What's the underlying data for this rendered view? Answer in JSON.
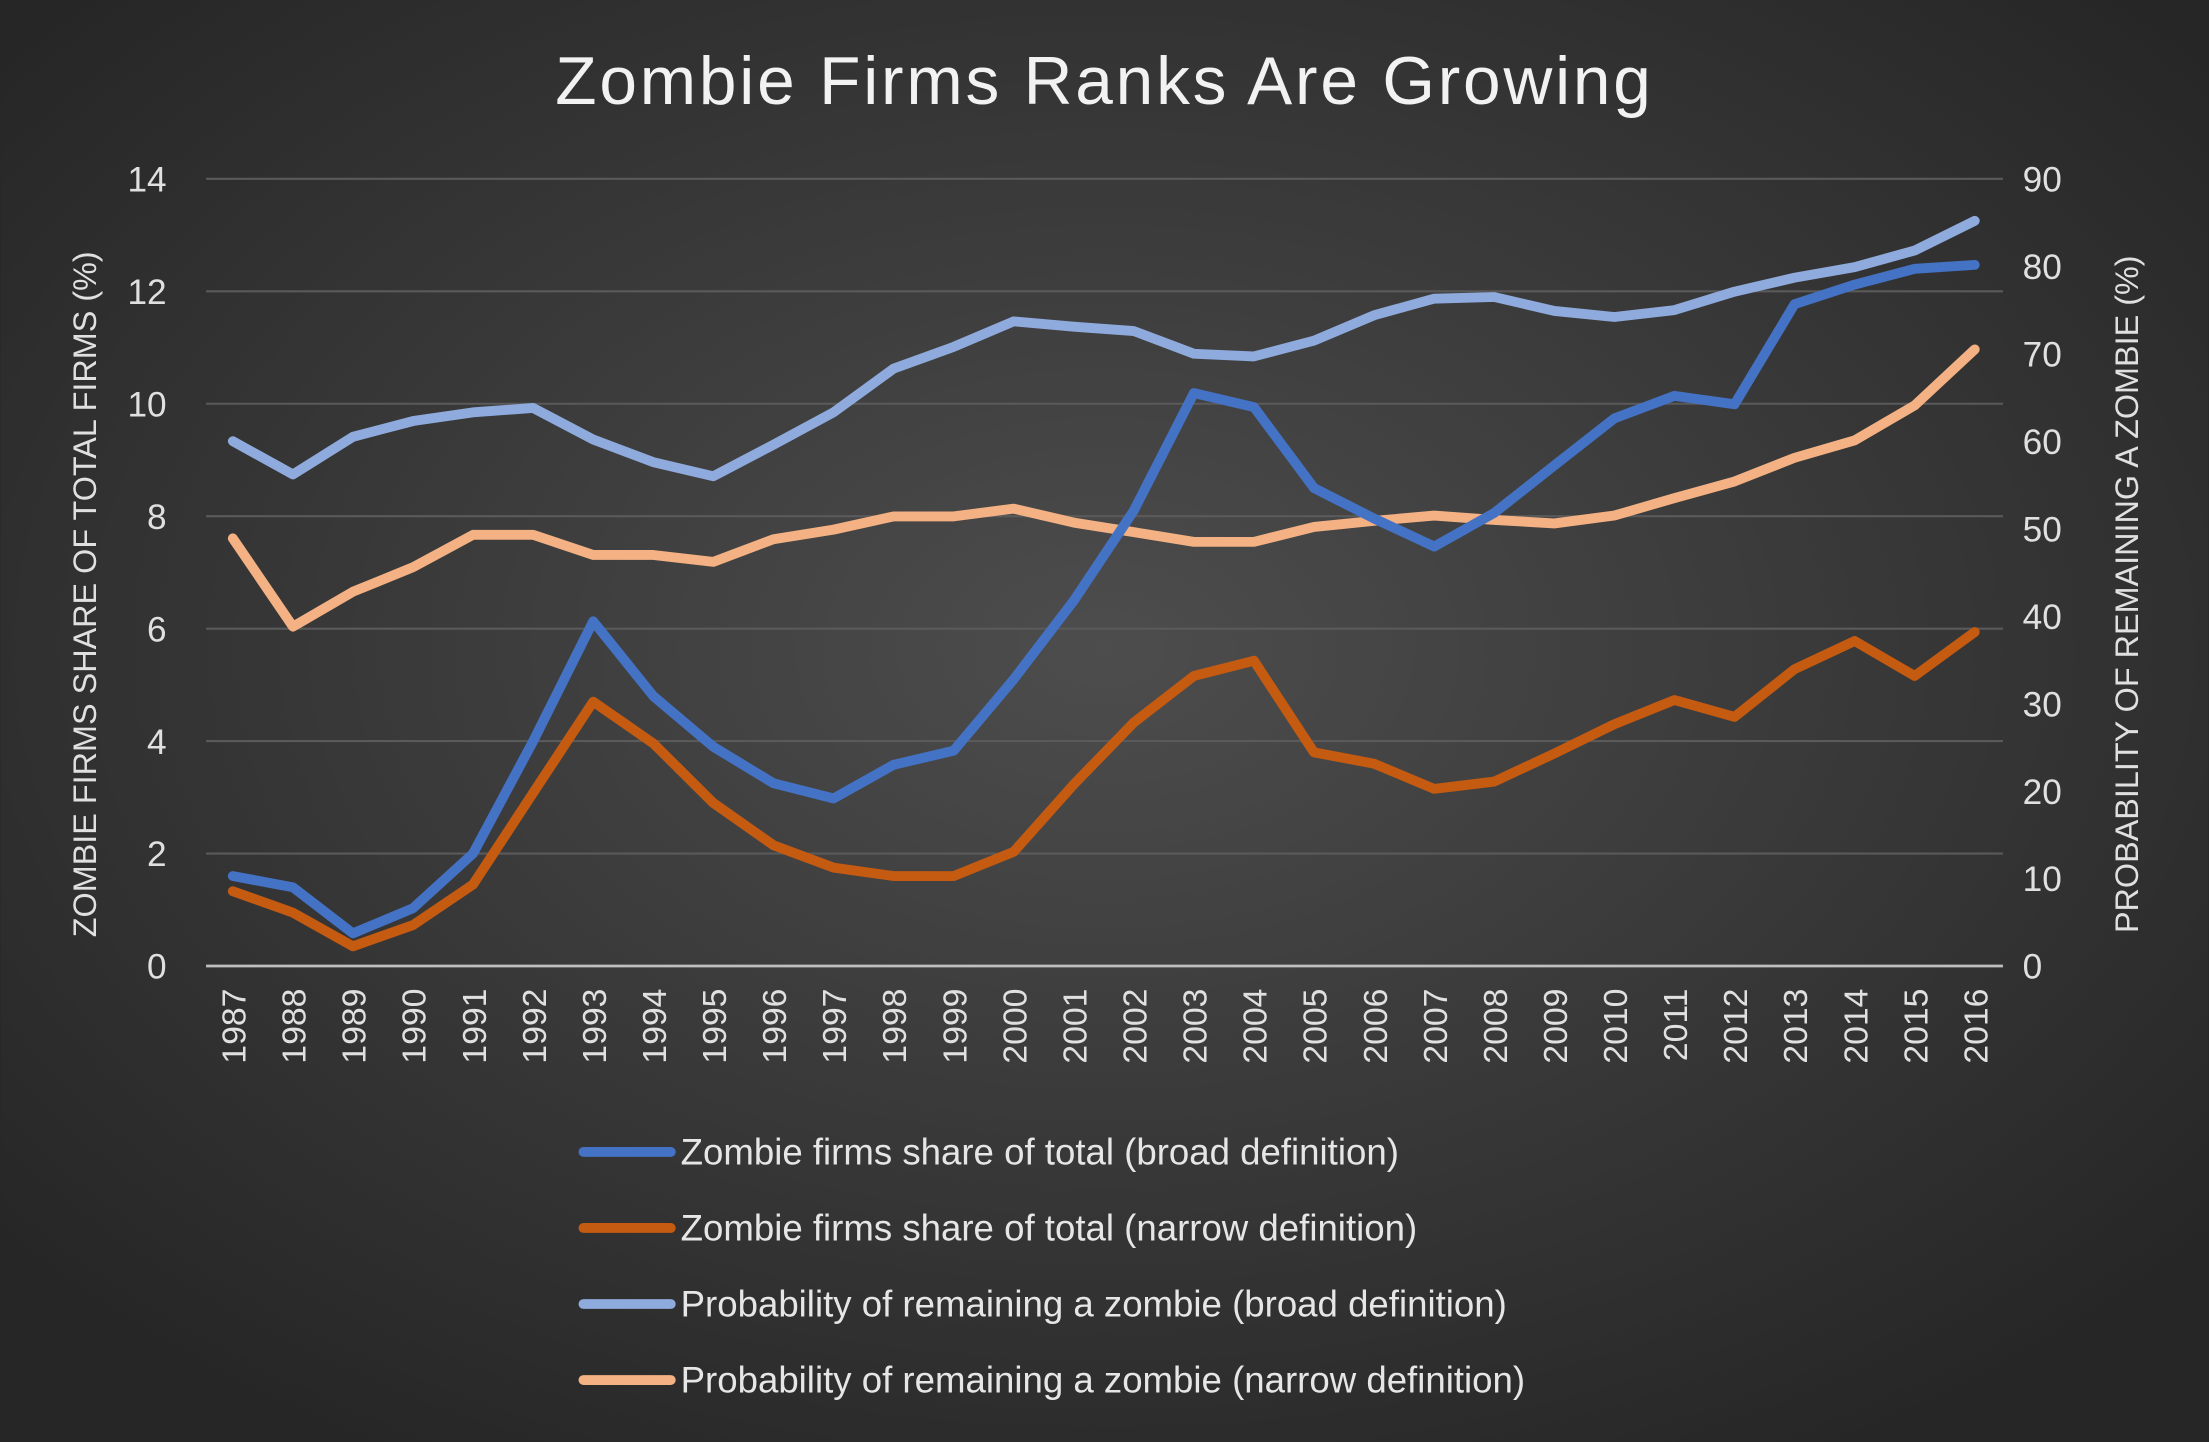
{
  "chart_data": {
    "type": "line",
    "title": "Zombie Firms Ranks Are Growing",
    "ylabel": "ZOMBIE FIRMS SHARE OF TOTAL FIRMS (%)",
    "y2label": "PROBABILITY OF REMAINING A ZOMBIE (%)",
    "ylim": [
      0,
      14
    ],
    "y2lim": [
      0,
      90
    ],
    "yticks": [
      "0",
      "2",
      "4",
      "6",
      "8",
      "10",
      "12",
      "14"
    ],
    "y2ticks": [
      "0",
      "10",
      "20",
      "30",
      "40",
      "50",
      "60",
      "70",
      "80",
      "90"
    ],
    "grid": true,
    "legend_position": "bottom",
    "x": [
      "1987",
      "1988",
      "1989",
      "1990",
      "1991",
      "1992",
      "1993",
      "1994",
      "1995",
      "1996",
      "1997",
      "1998",
      "1999",
      "2000",
      "2001",
      "2002",
      "2003",
      "2004",
      "2005",
      "2006",
      "2007",
      "2008",
      "2009",
      "2010",
      "2011",
      "2012",
      "2013",
      "2014",
      "2015",
      "2016"
    ],
    "series": [
      {
        "name": "Zombie firms share of total (broad definition)",
        "axis": "left",
        "color": "#4472c4",
        "values": [
          1.6,
          1.4,
          0.58,
          1.03,
          2.0,
          4.0,
          6.13,
          4.8,
          3.9,
          3.25,
          2.98,
          3.58,
          3.83,
          5.1,
          6.5,
          8.1,
          10.19,
          9.94,
          8.5,
          7.96,
          7.46,
          8.06,
          8.9,
          9.74,
          10.14,
          9.99,
          11.77,
          12.12,
          12.4,
          12.47
        ]
      },
      {
        "name": "Zombie firms share of total (narrow definition)",
        "axis": "left",
        "color": "#c55a11",
        "values": [
          1.33,
          0.95,
          0.35,
          0.73,
          1.45,
          3.08,
          4.7,
          3.96,
          2.9,
          2.15,
          1.75,
          1.6,
          1.6,
          2.03,
          3.23,
          4.33,
          5.16,
          5.43,
          3.8,
          3.6,
          3.15,
          3.28,
          3.78,
          4.3,
          4.73,
          4.43,
          5.28,
          5.78,
          5.16,
          5.94
        ]
      },
      {
        "name": "Probability of remaining a zombie (broad definition)",
        "axis": "right",
        "color": "#8faadc",
        "values": [
          60.0,
          56.2,
          60.5,
          62.3,
          63.3,
          63.8,
          60.2,
          57.6,
          56.0,
          59.6,
          63.3,
          68.3,
          70.8,
          73.7,
          73.1,
          72.6,
          70.0,
          69.7,
          71.5,
          74.4,
          76.3,
          76.5,
          74.9,
          74.2,
          75.0,
          77.1,
          78.7,
          79.9,
          81.8,
          85.2
        ]
      },
      {
        "name": "Probability of remaining a zombie (narrow definition)",
        "axis": "right",
        "color": "#f4b183",
        "values": [
          48.9,
          38.8,
          42.8,
          45.6,
          49.3,
          49.3,
          47.0,
          47.0,
          46.2,
          48.8,
          49.9,
          51.4,
          51.4,
          52.3,
          50.7,
          49.6,
          48.5,
          48.5,
          50.2,
          50.9,
          51.5,
          51.0,
          50.6,
          51.5,
          53.5,
          55.4,
          58.1,
          60.1,
          64.1,
          70.5
        ]
      }
    ]
  }
}
